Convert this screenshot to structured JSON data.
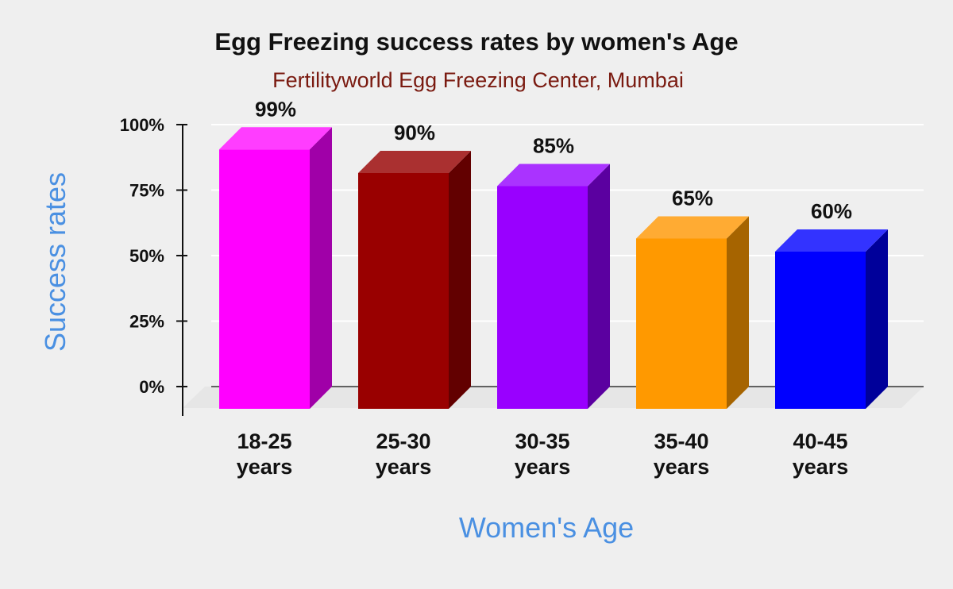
{
  "chart_data": {
    "type": "bar",
    "style": "3d",
    "title": "Egg Freezing success rates by women's Age",
    "subtitle": "Fertilityworld Egg Freezing Center, Mumbai",
    "xlabel": "Women's Age",
    "ylabel": "Success rates",
    "ylim": [
      0,
      100
    ],
    "yticks": [
      0,
      25,
      50,
      75,
      100
    ],
    "ytick_labels": [
      "0%",
      "25%",
      "50%",
      "75%",
      "100%"
    ],
    "grid": true,
    "categories": [
      [
        "18-25",
        "years"
      ],
      [
        "25-30",
        "years"
      ],
      [
        "30-35",
        "years"
      ],
      [
        "35-40",
        "years"
      ],
      [
        "40-45",
        "years"
      ]
    ],
    "values": [
      99,
      90,
      85,
      65,
      60
    ],
    "data_labels": [
      "99%",
      "90%",
      "85%",
      "65%",
      "60%"
    ],
    "colors": [
      "#ff00ff",
      "#990000",
      "#9900ff",
      "#ff9900",
      "#0000ff"
    ],
    "side_colors": [
      "#a000a8",
      "#620000",
      "#5b00a0",
      "#a66400",
      "#00009a"
    ],
    "top_colors": [
      "#ff3dff",
      "#aa3030",
      "#aa33ff",
      "#ffab33",
      "#3333ff"
    ],
    "title_color": "#111111",
    "subtitle_color": "#7a1a10",
    "axis_title_color": "#4a90e2"
  }
}
